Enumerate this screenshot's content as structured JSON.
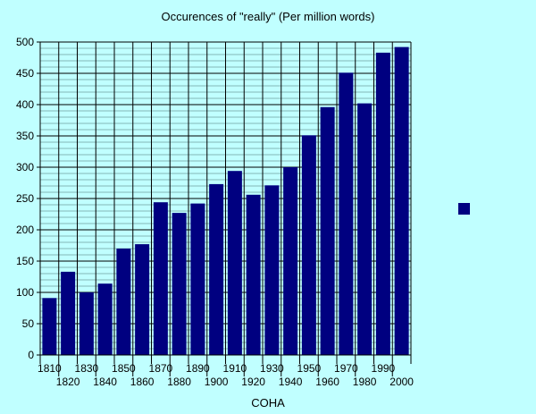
{
  "chart_data": {
    "type": "bar",
    "title": "Occurences of  \"really\" (Per million words)",
    "xlabel": "COHA",
    "ylabel": "",
    "categories": [
      "1810",
      "1820",
      "1830",
      "1840",
      "1850",
      "1860",
      "1870",
      "1880",
      "1890",
      "1900",
      "1910",
      "1920",
      "1930",
      "1940",
      "1950",
      "1960",
      "1970",
      "1980",
      "1990",
      "2000"
    ],
    "values": [
      91,
      133,
      100,
      114,
      170,
      177,
      244,
      227,
      242,
      273,
      294,
      256,
      271,
      300,
      351,
      396,
      451,
      402,
      483,
      492
    ],
    "ylim": [
      0,
      500
    ],
    "yticks": [
      0,
      50,
      100,
      150,
      200,
      250,
      300,
      350,
      400,
      450,
      500
    ],
    "minor_grid_step": 10,
    "grid": true,
    "legend": "right",
    "colors": {
      "background": "#c0ffff",
      "bar": "#000080",
      "major_grid": "#000000",
      "minor_grid": "#6f9f9f"
    }
  }
}
